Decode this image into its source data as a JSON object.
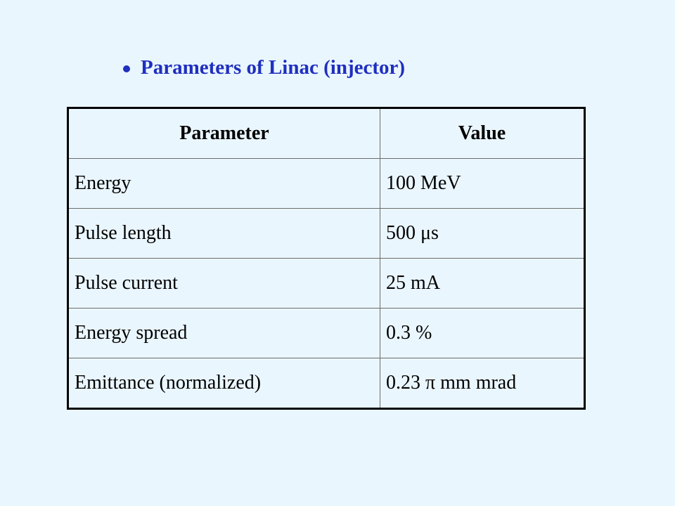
{
  "header": {
    "title": "Parameters of Linac (injector)"
  },
  "table": {
    "headers": [
      "Parameter",
      "Value"
    ],
    "rows": [
      [
        "Energy",
        "100 MeV"
      ],
      [
        "Pulse length",
        "500 μs"
      ],
      [
        "Pulse current",
        "25 mA"
      ],
      [
        "Energy spread",
        "0.3 %"
      ],
      [
        "Emittance (normalized)",
        "0.23 π mm mrad"
      ]
    ]
  }
}
